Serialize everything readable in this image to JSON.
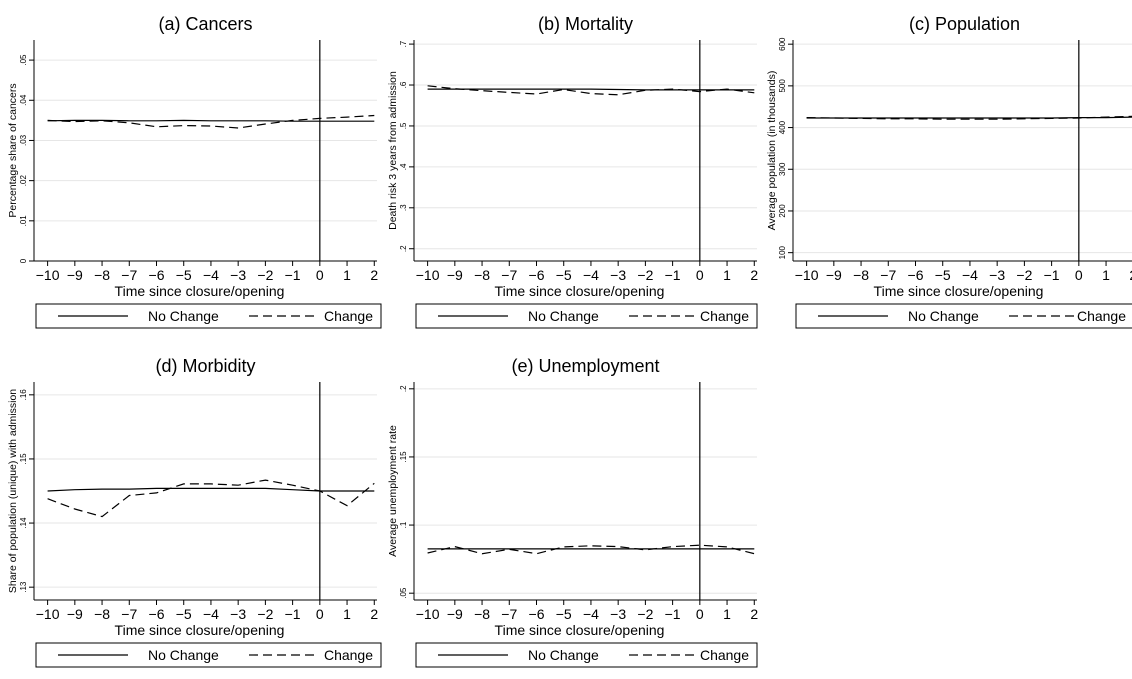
{
  "chart_data": [
    {
      "type": "line",
      "title": "(a) Cancers",
      "xlabel": "Time since closure/opening",
      "ylabel": "Percentage share of cancers",
      "x": [
        -10,
        -9,
        -8,
        -7,
        -6,
        -5,
        -4,
        -3,
        -2,
        -1,
        0,
        1,
        2
      ],
      "xticks": [
        "−10",
        "−9",
        "−8",
        "−7",
        "−6",
        "−5",
        "−4",
        "−3",
        "−2",
        "−1",
        "0",
        "1",
        "2"
      ],
      "ylim": [
        0,
        0.055
      ],
      "yticks": [
        0,
        0.01,
        0.02,
        0.03,
        0.04,
        0.05
      ],
      "ytick_labels": [
        "0",
        ".01",
        ".02",
        ".03",
        ".04",
        ".05"
      ],
      "vline_x": 0,
      "series": [
        {
          "name": "No Change",
          "style": "solid",
          "values": [
            0.0349,
            0.035,
            0.035,
            0.0349,
            0.0349,
            0.035,
            0.0349,
            0.0349,
            0.0349,
            0.0348,
            0.0348,
            0.0348,
            0.0348
          ]
        },
        {
          "name": "Change",
          "style": "dashed",
          "values": [
            0.035,
            0.0347,
            0.0349,
            0.0344,
            0.0334,
            0.0337,
            0.0336,
            0.0331,
            0.0341,
            0.035,
            0.0355,
            0.0358,
            0.0362
          ]
        }
      ],
      "legend": [
        "No Change",
        "Change"
      ]
    },
    {
      "type": "line",
      "title": "(b) Mortality",
      "xlabel": "Time since closure/opening",
      "ylabel": "Death risk 3 years from admission",
      "x": [
        -10,
        -9,
        -8,
        -7,
        -6,
        -5,
        -4,
        -3,
        -2,
        -1,
        0,
        1,
        2
      ],
      "xticks": [
        "−10",
        "−9",
        "−8",
        "−7",
        "−6",
        "−5",
        "−4",
        "−3",
        "−2",
        "−1",
        "0",
        "1",
        "2"
      ],
      "ylim": [
        0.17,
        0.71
      ],
      "yticks": [
        0.2,
        0.3,
        0.4,
        0.5,
        0.6,
        0.7
      ],
      "ytick_labels": [
        ".2",
        ".3",
        ".4",
        ".5",
        ".6",
        ".7"
      ],
      "vline_x": 0,
      "series": [
        {
          "name": "No Change",
          "style": "solid",
          "values": [
            0.59,
            0.59,
            0.59,
            0.59,
            0.59,
            0.59,
            0.59,
            0.589,
            0.588,
            0.588,
            0.588,
            0.588,
            0.588
          ]
        },
        {
          "name": "Change",
          "style": "dashed",
          "values": [
            0.598,
            0.591,
            0.586,
            0.582,
            0.578,
            0.589,
            0.579,
            0.576,
            0.587,
            0.59,
            0.584,
            0.59,
            0.581
          ]
        }
      ],
      "legend": [
        "No Change",
        "Change"
      ]
    },
    {
      "type": "line",
      "title": "(c) Population",
      "xlabel": "Time since closure/opening",
      "ylabel": "Average population (in thousands)",
      "x": [
        -10,
        -9,
        -8,
        -7,
        -6,
        -5,
        -4,
        -3,
        -2,
        -1,
        0,
        1,
        2
      ],
      "xticks": [
        "−10",
        "−9",
        "−8",
        "−7",
        "−6",
        "−5",
        "−4",
        "−3",
        "−2",
        "−1",
        "0",
        "1",
        "2"
      ],
      "ylim": [
        80,
        610
      ],
      "yticks": [
        100,
        200,
        300,
        400,
        500,
        600
      ],
      "ytick_labels": [
        "100",
        "200",
        "300",
        "400",
        "500",
        "600"
      ],
      "vline_x": 0,
      "series": [
        {
          "name": "No Change",
          "style": "solid",
          "values": [
            423,
            423,
            423,
            423,
            423,
            423,
            423,
            423,
            423,
            423,
            424,
            424,
            425
          ]
        },
        {
          "name": "Change",
          "style": "dashed",
          "values": [
            424,
            423,
            422,
            421,
            421,
            420,
            420,
            420,
            421,
            422,
            423,
            425,
            427
          ]
        }
      ],
      "legend": [
        "No Change",
        "Change"
      ]
    },
    {
      "type": "line",
      "title": "(d) Morbidity",
      "xlabel": "Time since closure/opening",
      "ylabel": "Share of population (unique) with admission",
      "x": [
        -10,
        -9,
        -8,
        -7,
        -6,
        -5,
        -4,
        -3,
        -2,
        -1,
        0,
        1,
        2
      ],
      "xticks": [
        "−10",
        "−9",
        "−8",
        "−7",
        "−6",
        "−5",
        "−4",
        "−3",
        "−2",
        "−1",
        "0",
        "1",
        "2"
      ],
      "ylim": [
        0.128,
        0.162
      ],
      "yticks": [
        0.13,
        0.14,
        0.15,
        0.16
      ],
      "ytick_labels": [
        ".13",
        ".14",
        ".15",
        ".16"
      ],
      "vline_x": 0,
      "series": [
        {
          "name": "No Change",
          "style": "solid",
          "values": [
            0.145,
            0.1452,
            0.1453,
            0.1453,
            0.1454,
            0.1454,
            0.1454,
            0.1454,
            0.1454,
            0.1452,
            0.145,
            0.145,
            0.145
          ]
        },
        {
          "name": "Change",
          "style": "dashed",
          "values": [
            0.1438,
            0.1422,
            0.141,
            0.1443,
            0.1447,
            0.1461,
            0.1461,
            0.1459,
            0.1467,
            0.1459,
            0.145,
            0.1427,
            0.1462
          ]
        }
      ],
      "legend": [
        "No Change",
        "Change"
      ]
    },
    {
      "type": "line",
      "title": "(e) Unemployment",
      "xlabel": "Time since closure/opening",
      "ylabel": "Average unemployment rate",
      "x": [
        -10,
        -9,
        -8,
        -7,
        -6,
        -5,
        -4,
        -3,
        -2,
        -1,
        0,
        1,
        2
      ],
      "xticks": [
        "−10",
        "−9",
        "−8",
        "−7",
        "−6",
        "−5",
        "−4",
        "−3",
        "−2",
        "−1",
        "0",
        "1",
        "2"
      ],
      "ylim": [
        0.045,
        0.205
      ],
      "yticks": [
        0.05,
        0.1,
        0.15,
        0.2
      ],
      "ytick_labels": [
        ".05",
        ".1",
        ".15",
        ".2"
      ],
      "vline_x": 0,
      "series": [
        {
          "name": "No Change",
          "style": "solid",
          "values": [
            0.0825,
            0.0825,
            0.0825,
            0.0825,
            0.0825,
            0.0825,
            0.0825,
            0.0825,
            0.0825,
            0.0825,
            0.0825,
            0.0825,
            0.0825
          ]
        },
        {
          "name": "Change",
          "style": "dashed",
          "values": [
            0.0795,
            0.0842,
            0.079,
            0.0822,
            0.079,
            0.084,
            0.0848,
            0.0842,
            0.0818,
            0.0842,
            0.0852,
            0.084,
            0.079
          ]
        }
      ],
      "legend": [
        "No Change",
        "Change"
      ]
    }
  ]
}
